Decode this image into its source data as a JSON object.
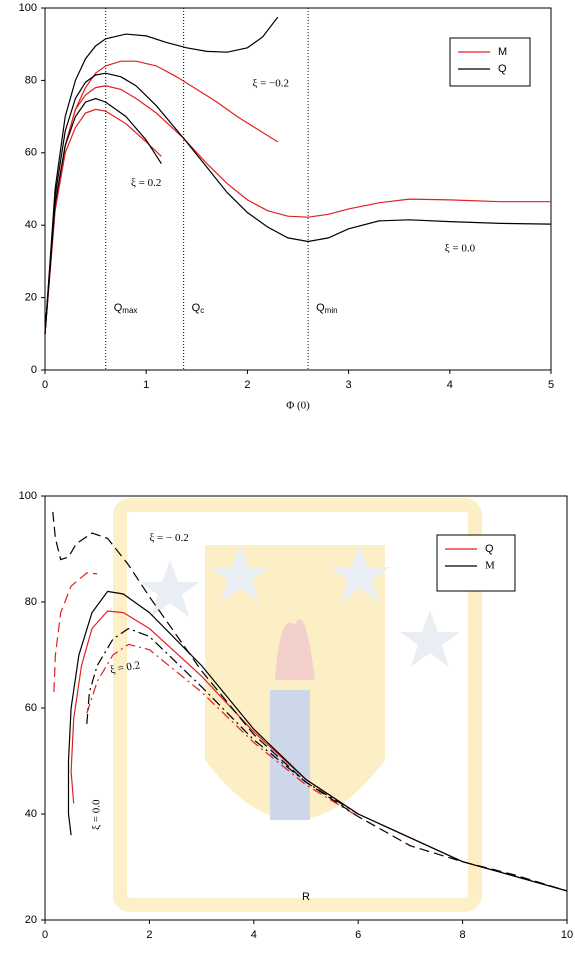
{
  "chart_data": [
    {
      "type": "line",
      "xlabel": "Φ (0)",
      "xlim": [
        0,
        5
      ],
      "ylim": [
        0,
        100
      ],
      "xticks": [
        0,
        1,
        2,
        3,
        4,
        5
      ],
      "yticks": [
        0,
        20,
        40,
        60,
        80,
        100
      ],
      "series": [
        {
          "name": "M",
          "color": "#e02020",
          "curves": [
            {
              "dash": "solid",
              "x": [
                0,
                0.1,
                0.2,
                0.3,
                0.4,
                0.5,
                0.6,
                0.75,
                0.9,
                1.1,
                1.3,
                1.5,
                1.7,
                1.9,
                2.1,
                2.3
              ],
              "values": [
                10,
                45,
                62,
                72,
                78,
                82,
                84,
                85.3,
                85.3,
                84,
                81,
                77.5,
                74,
                70,
                66.5,
                63
              ]
            },
            {
              "dash": "solid",
              "x": [
                0,
                0.1,
                0.2,
                0.3,
                0.4,
                0.5,
                0.6,
                0.75,
                0.9,
                1.1,
                1.37,
                1.6,
                1.8,
                2,
                2.2,
                2.4,
                2.6,
                2.8,
                3,
                3.3,
                3.6,
                4,
                4.5,
                5
              ],
              "values": [
                10,
                45,
                62,
                72,
                76,
                78,
                78.5,
                77.5,
                75,
                71,
                64,
                57,
                51.5,
                47,
                44,
                42.5,
                42.2,
                43,
                44.5,
                46.2,
                47.2,
                47,
                46.5,
                46.5
              ]
            },
            {
              "dash": "solid",
              "x": [
                0,
                0.1,
                0.2,
                0.3,
                0.4,
                0.5,
                0.6,
                0.8,
                1,
                1.15
              ],
              "values": [
                10,
                44,
                60,
                67,
                71,
                72,
                71.5,
                68,
                63,
                59
              ]
            }
          ]
        },
        {
          "name": "Q",
          "color": "#000000",
          "curves": [
            {
              "dash": "solid",
              "x": [
                0,
                0.1,
                0.2,
                0.3,
                0.4,
                0.5,
                0.6,
                0.8,
                1,
                1.2,
                1.4,
                1.6,
                1.8,
                2,
                2.15,
                2.3
              ],
              "values": [
                10,
                50,
                70,
                80,
                86,
                89.5,
                91.5,
                92.8,
                92.3,
                90.5,
                89,
                88,
                87.8,
                89,
                92,
                97.5
              ]
            },
            {
              "dash": "solid",
              "x": [
                0,
                0.1,
                0.2,
                0.3,
                0.4,
                0.5,
                0.6,
                0.75,
                0.9,
                1.1,
                1.37,
                1.6,
                1.8,
                2,
                2.2,
                2.4,
                2.6,
                2.8,
                3,
                3.3,
                3.6,
                4,
                4.5,
                5
              ],
              "values": [
                10,
                48,
                66,
                75,
                79.5,
                81.5,
                82,
                81,
                78.5,
                73,
                64,
                56,
                49,
                43.5,
                39.5,
                36.5,
                35.5,
                36.5,
                39,
                41.2,
                41.5,
                41,
                40.5,
                40.3
              ]
            },
            {
              "dash": "solid",
              "x": [
                0,
                0.1,
                0.2,
                0.3,
                0.4,
                0.5,
                0.6,
                0.8,
                1,
                1.15
              ],
              "values": [
                10,
                46,
                62,
                70,
                74,
                75,
                74,
                70,
                63.5,
                57
              ]
            }
          ]
        }
      ],
      "vlines": [
        {
          "x": 0.6,
          "label": "Q",
          "sub": "max"
        },
        {
          "x": 1.37,
          "label": "Q",
          "sub": "c"
        },
        {
          "x": 2.6,
          "label": "Q",
          "sub": "min"
        }
      ],
      "annotations": [
        {
          "text": "ξ = −0.2",
          "x": 2.05,
          "y": 79
        },
        {
          "text": "ξ = 0.2",
          "x": 0.85,
          "y": 51.5
        },
        {
          "text": "ξ = 0.0",
          "x": 3.95,
          "y": 33.5
        }
      ]
    },
    {
      "type": "line",
      "xlabel": "R",
      "xlim": [
        0,
        10
      ],
      "ylim": [
        20,
        100
      ],
      "xticks": [
        0,
        2,
        4,
        6,
        8,
        10
      ],
      "yticks": [
        20,
        40,
        60,
        80,
        100
      ],
      "series": [
        {
          "name": "Q",
          "color": "#e02020",
          "curves": [
            {
              "dash": "dashed",
              "x": [
                0.17,
                0.2,
                0.3,
                0.5,
                0.8,
                1.0
              ],
              "values": [
                63,
                70,
                78,
                83,
                85.5,
                85.3
              ]
            },
            {
              "dash": "solid",
              "x": [
                0.55,
                0.5,
                0.55,
                0.7,
                0.9,
                1.2,
                1.5,
                2,
                3,
                4,
                5,
                6,
                8,
                10
              ],
              "values": [
                42,
                48,
                58,
                68,
                75,
                78.3,
                78,
                75,
                66,
                55.5,
                46.5,
                40,
                31,
                25.5
              ]
            },
            {
              "dash": "dashdot",
              "x": [
                0.8,
                1,
                1.3,
                1.6,
                2,
                3,
                4,
                5,
                6
              ],
              "values": [
                59,
                65,
                70,
                72,
                71,
                63,
                53.5,
                45.5,
                39.5
              ]
            }
          ]
        },
        {
          "name": "M",
          "color": "#000000",
          "curves": [
            {
              "dash": "dashed",
              "x": [
                0.15,
                0.2,
                0.3,
                0.45,
                0.6,
                0.9,
                1.2,
                1.6,
                2,
                3,
                4,
                5,
                6,
                7,
                8,
                9,
                10
              ],
              "values": [
                97,
                92,
                88,
                88.5,
                91,
                93,
                92,
                87,
                81,
                67,
                55,
                46,
                39.5,
                34,
                31,
                28.5,
                25.5
              ]
            },
            {
              "dash": "solid",
              "x": [
                0.5,
                0.45,
                0.45,
                0.5,
                0.65,
                0.9,
                1.2,
                1.5,
                2,
                3,
                4,
                5,
                6,
                8,
                10
              ],
              "values": [
                36,
                40,
                50,
                60,
                70,
                78,
                82,
                81.5,
                78,
                68,
                56,
                46.5,
                40,
                31,
                25.5
              ]
            },
            {
              "dash": "dashdot",
              "x": [
                0.8,
                0.85,
                1,
                1.3,
                1.6,
                2,
                3,
                4,
                5,
                6
              ],
              "values": [
                57,
                63,
                68,
                73,
                75,
                73.5,
                64,
                54,
                46,
                40
              ]
            }
          ]
        }
      ],
      "annotations": [
        {
          "text": "ξ = − 0.2",
          "x": 2.0,
          "y": 92
        },
        {
          "text": "ξ =  0.2",
          "x": 1.25,
          "y": 67,
          "rotate": -10
        },
        {
          "text": "ξ = 0.0",
          "x": 1.0,
          "y": 37,
          "rotate": -90
        }
      ]
    }
  ]
}
